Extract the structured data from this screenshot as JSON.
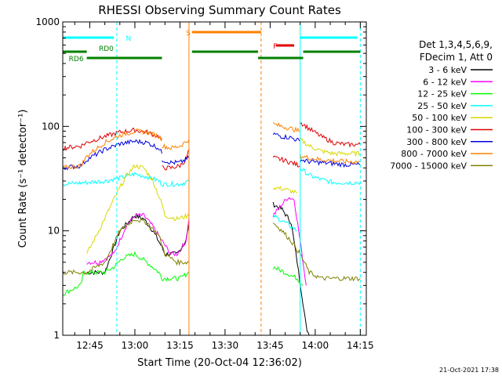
{
  "chart_data": {
    "type": "line",
    "title": "RHESSI Observing Summary Count Rates",
    "xlabel": "Start Time (20-Oct-04 12:36:02)",
    "ylabel": "Count Rate (s⁻¹ detector⁻¹)",
    "xlim": [
      "12:36",
      "14:17"
    ],
    "ylim": [
      1,
      1000
    ],
    "yscale": "log",
    "x_ticks": [
      "12:45",
      "13:00",
      "13:15",
      "13:30",
      "13:45",
      "14:00",
      "14:15"
    ],
    "y_ticks": [
      "1",
      "10",
      "100",
      "1000"
    ],
    "timestamp": "21-Oct-2021 17:38",
    "legend_header": [
      "Det 1,3,4,5,6,9,",
      "FDecim 1, Att 0"
    ],
    "legend_position": "right",
    "flags": [
      {
        "label": "N",
        "color": "#00ffff",
        "segments": [
          [
            "12:36",
            "12:53"
          ],
          [
            "13:55",
            "14:14"
          ]
        ]
      },
      {
        "label": "S",
        "color": "#ff8000",
        "segments": [
          [
            "13:19",
            "13:42"
          ]
        ]
      },
      {
        "label": "F",
        "color": "#e00000",
        "segments": [
          [
            "13:47",
            "13:53"
          ]
        ]
      },
      {
        "label": "RD0",
        "color": "#008000",
        "segments": [
          [
            "12:36",
            "12:44"
          ],
          [
            "13:19",
            "13:41"
          ],
          [
            "13:56",
            "14:15"
          ]
        ]
      },
      {
        "label": "RD6",
        "color": "#008000",
        "segments": [
          [
            "12:44",
            "13:09"
          ],
          [
            "13:41",
            "13:56"
          ]
        ]
      }
    ],
    "vlines": [
      {
        "x": "12:36",
        "color": "#00ffff",
        "style": "solid"
      },
      {
        "x": "12:54",
        "color": "#00ffff",
        "style": "dashed"
      },
      {
        "x": "13:18",
        "color": "#ff8000",
        "style": "solid"
      },
      {
        "x": "13:42",
        "color": "#ff8000",
        "style": "dashed"
      },
      {
        "x": "13:55",
        "color": "#00ffff",
        "style": "solid"
      },
      {
        "x": "14:15",
        "color": "#00ffff",
        "style": "dashed"
      }
    ],
    "series": [
      {
        "name": "3 - 6 keV",
        "color": "#000000",
        "segments": [
          {
            "x": [
              "12:44",
              "12:50",
              "12:55",
              "13:00",
              "13:03",
              "13:06",
              "13:09",
              "13:10",
              "13:14",
              "13:17",
              "13:18"
            ],
            "y": [
              4,
              4,
              10,
              14,
              13,
              10,
              7,
              6,
              6,
              8,
              12
            ]
          },
          {
            "x": [
              "13:46",
              "13:49",
              "13:52",
              "13:54",
              "13:56",
              "13:57",
              "13:58"
            ],
            "y": [
              18,
              16,
              12,
              5,
              2,
              1.2,
              1.0
            ]
          }
        ]
      },
      {
        "name": "6 - 12 keV",
        "color": "#ff00ff",
        "segments": [
          {
            "x": [
              "12:44",
              "12:48",
              "12:53",
              "12:57",
              "13:00",
              "13:03",
              "13:06",
              "13:09",
              "13:12",
              "13:14",
              "13:17",
              "13:18"
            ],
            "y": [
              5,
              5,
              6,
              11,
              14,
              14,
              11,
              8,
              6,
              6,
              8,
              13
            ]
          },
          {
            "x": [
              "13:46",
              "13:49",
              "13:51",
              "13:53",
              "13:55",
              "13:57"
            ],
            "y": [
              14,
              18,
              21,
              20,
              8,
              3
            ]
          }
        ]
      },
      {
        "name": "12 - 25 keV",
        "color": "#00ff00",
        "segments": [
          {
            "x": [
              "12:36",
              "12:42",
              "12:43",
              "12:50",
              "12:53",
              "12:56",
              "13:00",
              "13:04",
              "13:08",
              "13:09",
              "13:12",
              "13:15",
              "13:18"
            ],
            "y": [
              2.5,
              3,
              4,
              4,
              4.5,
              5.5,
              6,
              5,
              4,
              3.5,
              3.5,
              3.5,
              4
            ]
          },
          {
            "x": [
              "13:46",
              "13:50",
              "13:54",
              "13:56"
            ],
            "y": [
              4.5,
              4,
              3.5,
              3
            ]
          }
        ]
      },
      {
        "name": "25 - 50 keV",
        "color": "#00ffff",
        "segments": [
          {
            "x": [
              "12:36",
              "12:44",
              "12:50",
              "12:55",
              "13:00",
              "13:04",
              "13:08",
              "13:09",
              "13:12",
              "13:15",
              "13:18"
            ],
            "y": [
              28,
              29,
              30,
              32,
              35,
              33,
              30,
              28,
              28,
              28,
              30
            ]
          },
          {
            "x": [
              "13:46",
              "13:50",
              "13:54"
            ],
            "y": [
              14,
              12,
              10
            ]
          },
          {
            "x": [
              "13:55",
              "13:58",
              "14:02",
              "14:06",
              "14:10",
              "14:15"
            ],
            "y": [
              40,
              34,
              31,
              29,
              29,
              29
            ]
          }
        ]
      },
      {
        "name": "50 - 100 keV",
        "color": "#d8d800",
        "segments": [
          {
            "x": [
              "12:44",
              "12:48",
              "12:53",
              "12:57",
              "13:00",
              "13:03",
              "13:06",
              "13:09",
              "13:10",
              "13:14",
              "13:18"
            ],
            "y": [
              6,
              10,
              20,
              33,
              42,
              40,
              30,
              18,
              14,
              13,
              14
            ]
          },
          {
            "x": [
              "13:46",
              "13:50",
              "13:54"
            ],
            "y": [
              26,
              25,
              23
            ]
          },
          {
            "x": [
              "13:55",
              "13:58",
              "14:02",
              "14:06",
              "14:10",
              "14:15"
            ],
            "y": [
              75,
              65,
              58,
              55,
              55,
              55
            ]
          }
        ]
      },
      {
        "name": "100 - 300 keV",
        "color": "#e00000",
        "segments": [
          {
            "x": [
              "12:36",
              "12:42",
              "12:44",
              "12:50",
              "12:55",
              "13:00",
              "13:04",
              "13:08",
              "13:09"
            ],
            "y": [
              62,
              65,
              70,
              80,
              88,
              92,
              88,
              80,
              75
            ]
          },
          {
            "x": [
              "13:09",
              "13:12",
              "13:15",
              "13:17",
              "13:18"
            ],
            "y": [
              40,
              40,
              42,
              48,
              60
            ]
          },
          {
            "x": [
              "13:46",
              "13:49",
              "13:52",
              "13:55"
            ],
            "y": [
              50,
              48,
              45,
              42
            ]
          },
          {
            "x": [
              "13:55",
              "13:58",
              "14:02",
              "14:06",
              "14:10",
              "14:15"
            ],
            "y": [
              110,
              95,
              80,
              70,
              67,
              67
            ]
          }
        ]
      },
      {
        "name": "300 - 800 keV",
        "color": "#0000e0",
        "segments": [
          {
            "x": [
              "12:36",
              "12:42",
              "12:44",
              "12:50",
              "12:55",
              "13:00",
              "13:04",
              "13:08",
              "13:09"
            ],
            "y": [
              40,
              42,
              48,
              60,
              68,
              72,
              70,
              62,
              55
            ]
          },
          {
            "x": [
              "13:09",
              "13:12",
              "13:15",
              "13:18"
            ],
            "y": [
              48,
              45,
              45,
              50
            ]
          },
          {
            "x": [
              "13:46",
              "13:49",
              "13:52",
              "13:55"
            ],
            "y": [
              85,
              80,
              78,
              72
            ]
          },
          {
            "x": [
              "13:55",
              "13:58",
              "14:02",
              "14:06",
              "14:10",
              "14:15"
            ],
            "y": [
              48,
              46,
              45,
              44,
              43,
              43
            ]
          }
        ]
      },
      {
        "name": "800 - 7000 keV",
        "color": "#ff8000",
        "segments": [
          {
            "x": [
              "12:36",
              "12:42",
              "12:44",
              "12:50",
              "12:55",
              "13:00",
              "13:04",
              "13:08",
              "13:09"
            ],
            "y": [
              40,
              42,
              52,
              70,
              82,
              90,
              88,
              80,
              75
            ]
          },
          {
            "x": [
              "13:09",
              "13:12",
              "13:15",
              "13:18"
            ],
            "y": [
              65,
              62,
              65,
              75
            ]
          },
          {
            "x": [
              "13:46",
              "13:49",
              "13:52",
              "13:55"
            ],
            "y": [
              105,
              100,
              95,
              90
            ]
          },
          {
            "x": [
              "13:55",
              "13:58",
              "14:02",
              "14:06",
              "14:10",
              "14:15"
            ],
            "y": [
              52,
              50,
              48,
              47,
              46,
              46
            ]
          }
        ]
      },
      {
        "name": "7000 - 15000 keV",
        "color": "#808000",
        "segments": [
          {
            "x": [
              "12:36",
              "12:44",
              "12:50",
              "12:55",
              "13:00",
              "13:04",
              "13:08",
              "13:10",
              "13:14",
              "13:18"
            ],
            "y": [
              4,
              4,
              5,
              10,
              13,
              12,
              9,
              6,
              5,
              5
            ]
          },
          {
            "x": [
              "13:46",
              "13:49",
              "13:52",
              "13:55",
              "13:58",
              "14:02",
              "14:06",
              "14:10",
              "14:15"
            ],
            "y": [
              12,
              10,
              8,
              6,
              4,
              3.5,
              3.5,
              3.5,
              3.5
            ]
          }
        ]
      }
    ]
  }
}
